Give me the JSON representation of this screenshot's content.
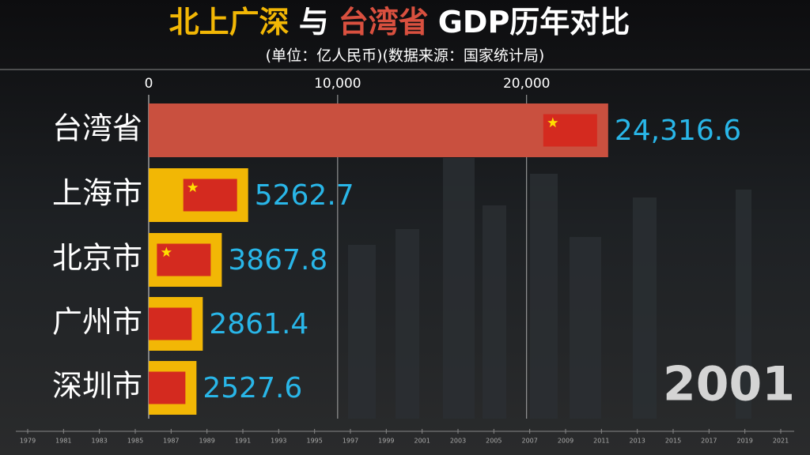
{
  "chart_data": {
    "type": "bar",
    "title_parts": [
      "北上广深",
      "与",
      "台湾省",
      "GDP历年对比"
    ],
    "title_colors": [
      "#f2b705",
      "#ffffff",
      "#d9503f",
      "#ffffff"
    ],
    "subtitle": "(单位：亿人民币)(数据来源：国家统计局)",
    "categories": [
      "台湾省",
      "上海市",
      "北京市",
      "广州市",
      "深圳市"
    ],
    "values": [
      24316.6,
      5262.7,
      3867.8,
      2861.4,
      2527.6
    ],
    "value_labels": [
      "24,316.6",
      "5262.7",
      "3867.8",
      "2861.4",
      "2527.6"
    ],
    "colors": [
      "#c9503f",
      "#f2b705",
      "#f2b705",
      "#f2b705",
      "#f2b705"
    ],
    "xlim": [
      0,
      35000
    ],
    "xticks": [
      0,
      {
        "value": 10000,
        "label": "10,000"
      },
      {
        "value": 20000,
        "label": "20,000"
      }
    ],
    "grid": true,
    "year": 2001,
    "timeline": [
      1979,
      1981,
      1983,
      1985,
      1987,
      1989,
      1991,
      1993,
      1995,
      1997,
      1999,
      2001,
      2003,
      2005,
      2007,
      2009,
      2011,
      2013,
      2015,
      2017,
      2019,
      2021
    ]
  }
}
